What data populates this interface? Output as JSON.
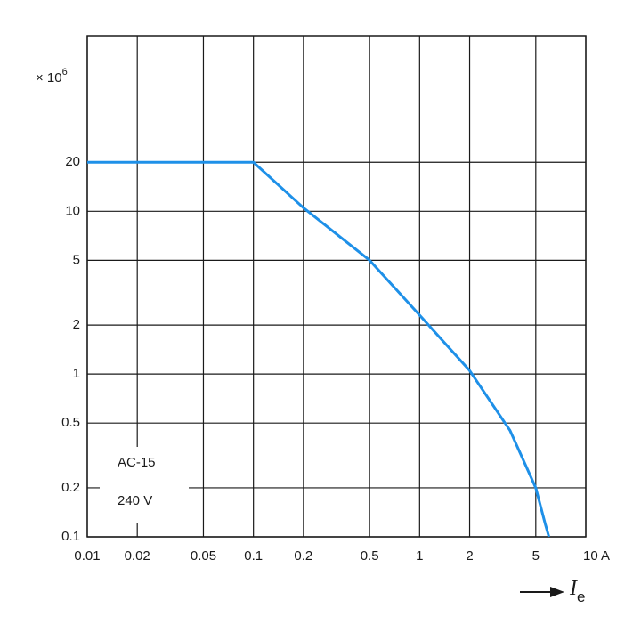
{
  "chart_data": {
    "type": "line",
    "y_label": "× 10",
    "y_label_exponent": "6",
    "x_label": "I",
    "x_label_subscript": "e",
    "annotations": [
      "AC-15",
      "240 V"
    ],
    "log_x": true,
    "log_y": true,
    "grid": true,
    "xlim": [
      0.01,
      10
    ],
    "ylim": [
      0.1,
      120
    ],
    "xticks": [
      0.01,
      0.02,
      0.05,
      0.1,
      0.2,
      0.5,
      1,
      2,
      5,
      {
        "value": 10,
        "label": "10 A"
      }
    ],
    "yticks": [
      0.1,
      0.2,
      0.5,
      1,
      2,
      5,
      10,
      20
    ],
    "x": [
      0.01,
      0.1,
      0.2,
      0.5,
      1,
      2,
      3.5,
      5,
      5.7,
      6
    ],
    "series": [
      {
        "name": "AC-15 240 V",
        "color": "#1e90e8",
        "values": [
          20,
          20,
          10.5,
          5,
          2.3,
          1.05,
          0.45,
          0.2,
          0.12,
          0.1
        ]
      }
    ]
  }
}
